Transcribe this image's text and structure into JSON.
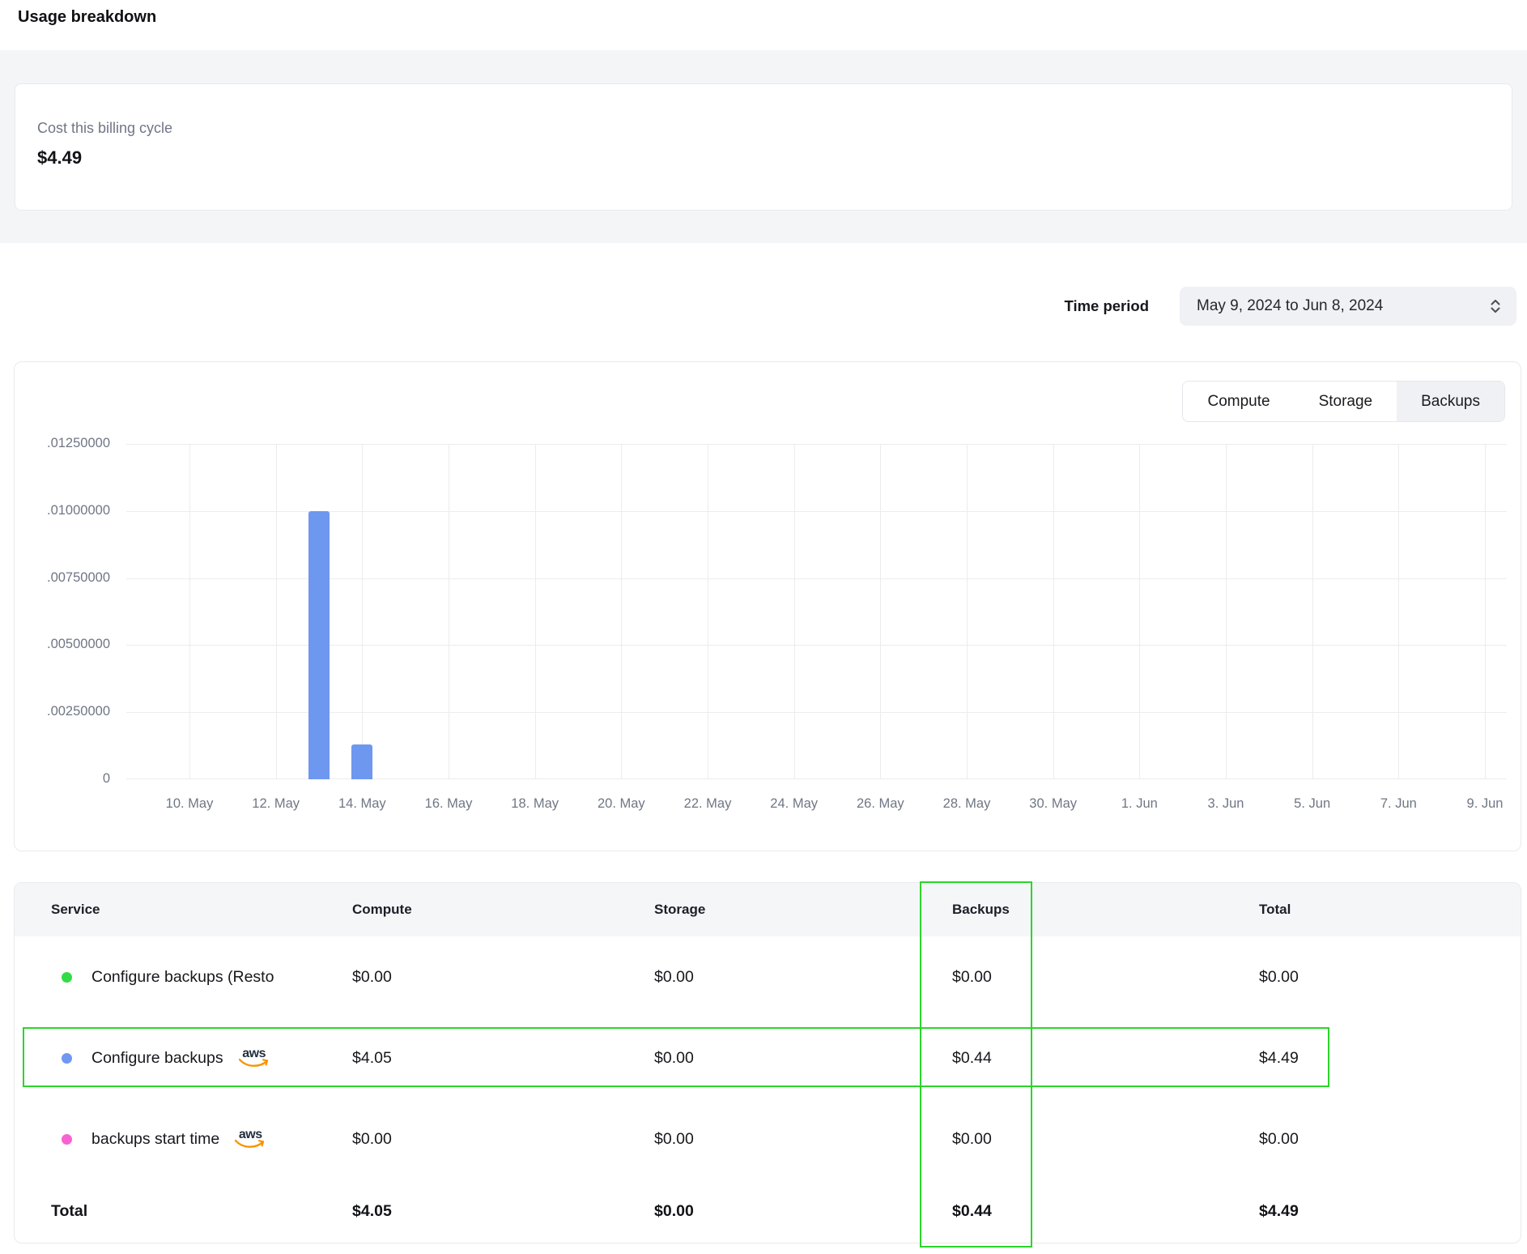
{
  "page": {
    "title": "Usage breakdown"
  },
  "summary": {
    "label": "Cost this billing cycle",
    "value": "$4.49"
  },
  "time_period": {
    "label": "Time period",
    "value": "May 9, 2024 to Jun 8, 2024"
  },
  "tabs": [
    {
      "label": "Compute",
      "selected": false
    },
    {
      "label": "Storage",
      "selected": false
    },
    {
      "label": "Backups",
      "selected": true
    }
  ],
  "chart_data": {
    "type": "bar",
    "title": "",
    "xlabel": "",
    "ylabel": "",
    "x": [
      "10. May",
      "12. May",
      "14. May",
      "16. May",
      "18. May",
      "20. May",
      "22. May",
      "24. May",
      "26. May",
      "28. May",
      "30. May",
      "1. Jun",
      "3. Jun",
      "5. Jun",
      "7. Jun",
      "9. Jun"
    ],
    "y_ticks": [
      ".01250000",
      ".01000000",
      ".00750000",
      ".00500000",
      ".00250000",
      "0"
    ],
    "ylim": [
      0,
      0.0125
    ],
    "grid": true,
    "legend": "none",
    "bar_color": "#6e97ef",
    "bars": [
      {
        "date": "13. May",
        "grid_index": 1.5,
        "value": 0.01
      },
      {
        "date": "14. May",
        "grid_index": 2.0,
        "value": 0.0013
      }
    ]
  },
  "table": {
    "columns": [
      "Service",
      "Compute",
      "Storage",
      "Backups",
      "Total"
    ],
    "aws_logo_text": "aws",
    "rows": [
      {
        "service": "Configure backups (Resto",
        "dot_color": "#30dd44",
        "compute": "$0.00",
        "storage": "$0.00",
        "backups": "$0.00",
        "total": "$0.00"
      },
      {
        "service": "Configure backups",
        "dot_color": "#7097f1",
        "compute": "$4.05",
        "storage": "$0.00",
        "backups": "$0.44",
        "total": "$4.49"
      },
      {
        "service": "backups start time",
        "dot_color": "#f763d2",
        "compute": "$0.00",
        "storage": "$0.00",
        "backups": "$0.00",
        "total": "$0.00"
      }
    ],
    "total_row": {
      "label": "Total",
      "compute": "$4.05",
      "storage": "$0.00",
      "backups": "$0.44",
      "total": "$4.49"
    }
  },
  "annotations": {
    "color": "#2bd52b"
  }
}
